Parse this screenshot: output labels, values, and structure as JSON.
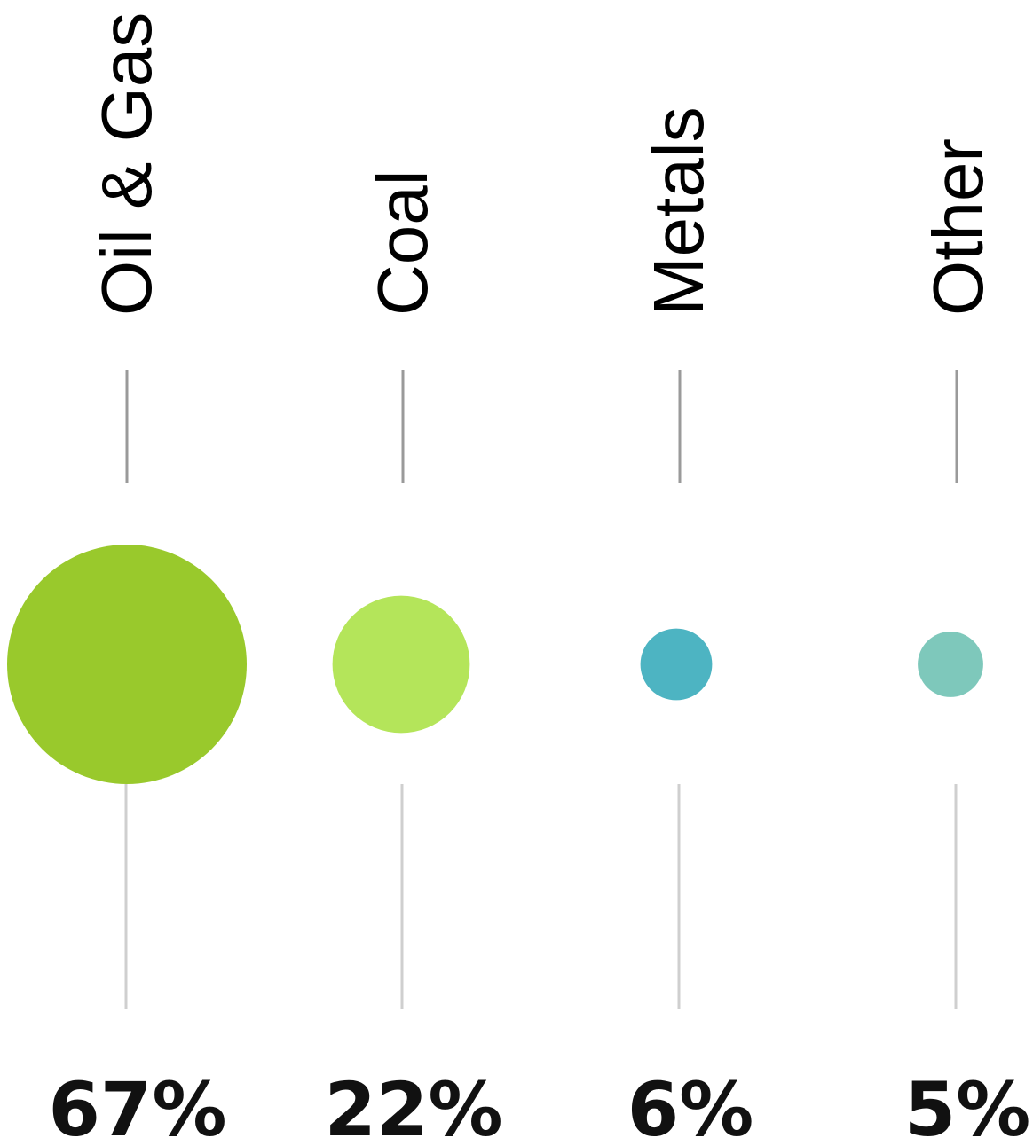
{
  "chart_data": {
    "type": "bubble",
    "categories": [
      "Oil & Gas",
      "Coal",
      "Metals",
      "Other"
    ],
    "values": [
      67,
      22,
      6,
      5
    ],
    "value_labels": [
      "67%",
      "22%",
      "6%",
      "5%"
    ],
    "colors": [
      "#99c92c",
      "#b4e55a",
      "#4db4c2",
      "#7ec8bb"
    ],
    "unit": "%",
    "title": "",
    "xlabel": "",
    "ylabel": "",
    "legend": "none",
    "grid": false
  }
}
